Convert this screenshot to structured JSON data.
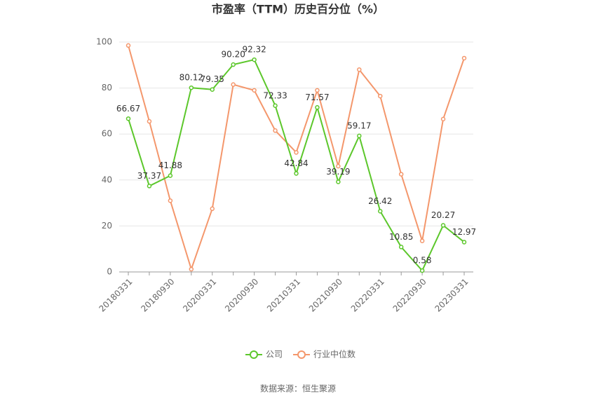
{
  "chart_data": {
    "type": "line",
    "title": "市盈率（TTM）历史百分位（%）",
    "categories": [
      "20180331",
      null,
      "20180930",
      null,
      "20200331",
      null,
      "20200930",
      null,
      "20210331",
      null,
      "20210930",
      null,
      "20220331",
      null,
      "20220930",
      null,
      "20230331"
    ],
    "series": [
      {
        "name": "公司",
        "color": "#5cc72b",
        "values": [
          66.67,
          37.37,
          41.88,
          80.12,
          79.35,
          90.2,
          92.32,
          72.33,
          42.84,
          71.57,
          39.19,
          59.17,
          26.42,
          10.85,
          0.58,
          20.27,
          12.97
        ],
        "value_labels": [
          "66.67",
          "37.37",
          "41.88",
          "80.12",
          "79.35",
          "90.20",
          "92.32",
          "72.33",
          "42.84",
          "71.57",
          "39.19",
          "59.17",
          "26.42",
          "10.85",
          "0.58",
          "20.27",
          "12.97"
        ]
      },
      {
        "name": "行业中位数",
        "color": "#f4976c",
        "values": [
          98.5,
          65.5,
          31,
          1.2,
          27.5,
          81.5,
          79,
          61.5,
          52,
          79,
          46,
          88,
          76.5,
          42.5,
          13.5,
          66.5,
          93
        ]
      }
    ],
    "ylim": [
      0,
      100
    ],
    "yticks": [
      0,
      20,
      40,
      60,
      80,
      100
    ],
    "grid": true,
    "source": "数据来源：恒生聚源"
  }
}
